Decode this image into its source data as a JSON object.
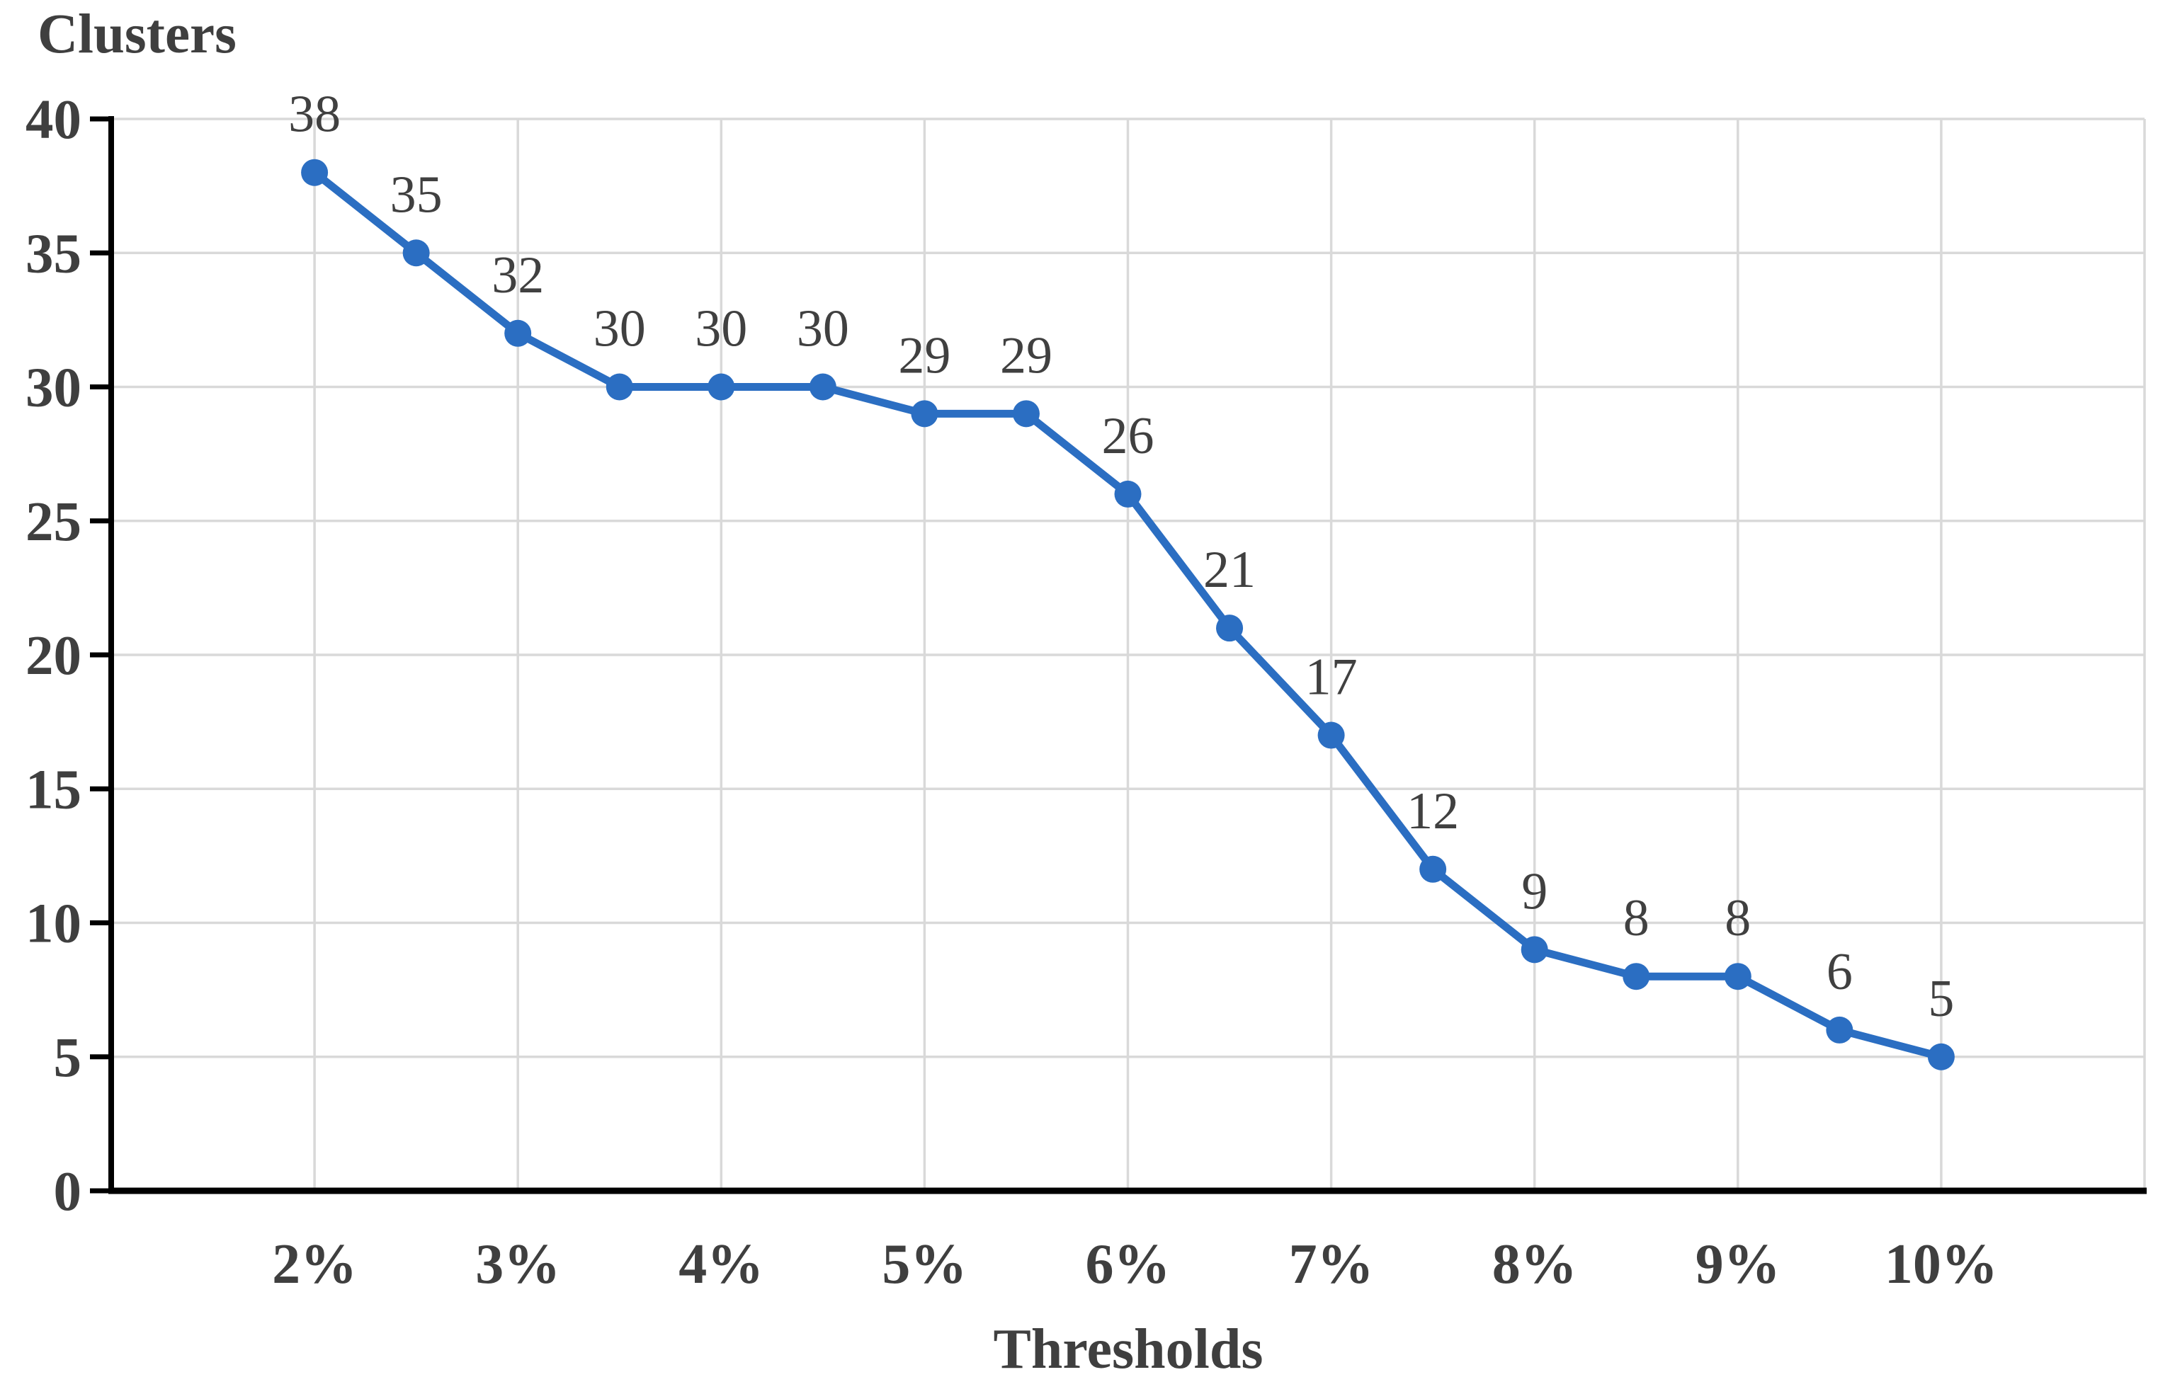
{
  "chart_data": {
    "type": "line",
    "title": "",
    "ylabel": "Clusters",
    "xlabel": "Thresholds",
    "x": [
      2,
      2.5,
      3,
      3.5,
      4,
      4.5,
      5,
      5.5,
      6,
      6.5,
      7,
      7.5,
      8,
      8.5,
      9,
      9.5,
      10
    ],
    "values": [
      38,
      35,
      32,
      30,
      30,
      30,
      29,
      29,
      26,
      21,
      17,
      12,
      9,
      8,
      8,
      6,
      5
    ],
    "data_labels": [
      "38",
      "35",
      "32",
      "30",
      "30",
      "30",
      "29",
      "29",
      "26",
      "21",
      "17",
      "12",
      "9",
      "8",
      "8",
      "6",
      "5"
    ],
    "x_tick_values": [
      2,
      3,
      4,
      5,
      6,
      7,
      8,
      9,
      10
    ],
    "x_tick_labels": [
      "2%",
      "3%",
      "4%",
      "5%",
      "6%",
      "7%",
      "8%",
      "9%",
      "10%"
    ],
    "y_ticks": [
      0,
      5,
      10,
      15,
      20,
      25,
      30,
      35,
      40
    ],
    "ylim": [
      0,
      40
    ],
    "xlim_pct": [
      1,
      11
    ],
    "grid": "both",
    "legend": "none",
    "marker": "circle",
    "colors": {
      "line": "#2B6EC2",
      "grid": "#D9D9D9",
      "axis": "#000000",
      "text": "#3F3F3F",
      "data_label": "#404040",
      "background": "#FFFFFF"
    }
  }
}
